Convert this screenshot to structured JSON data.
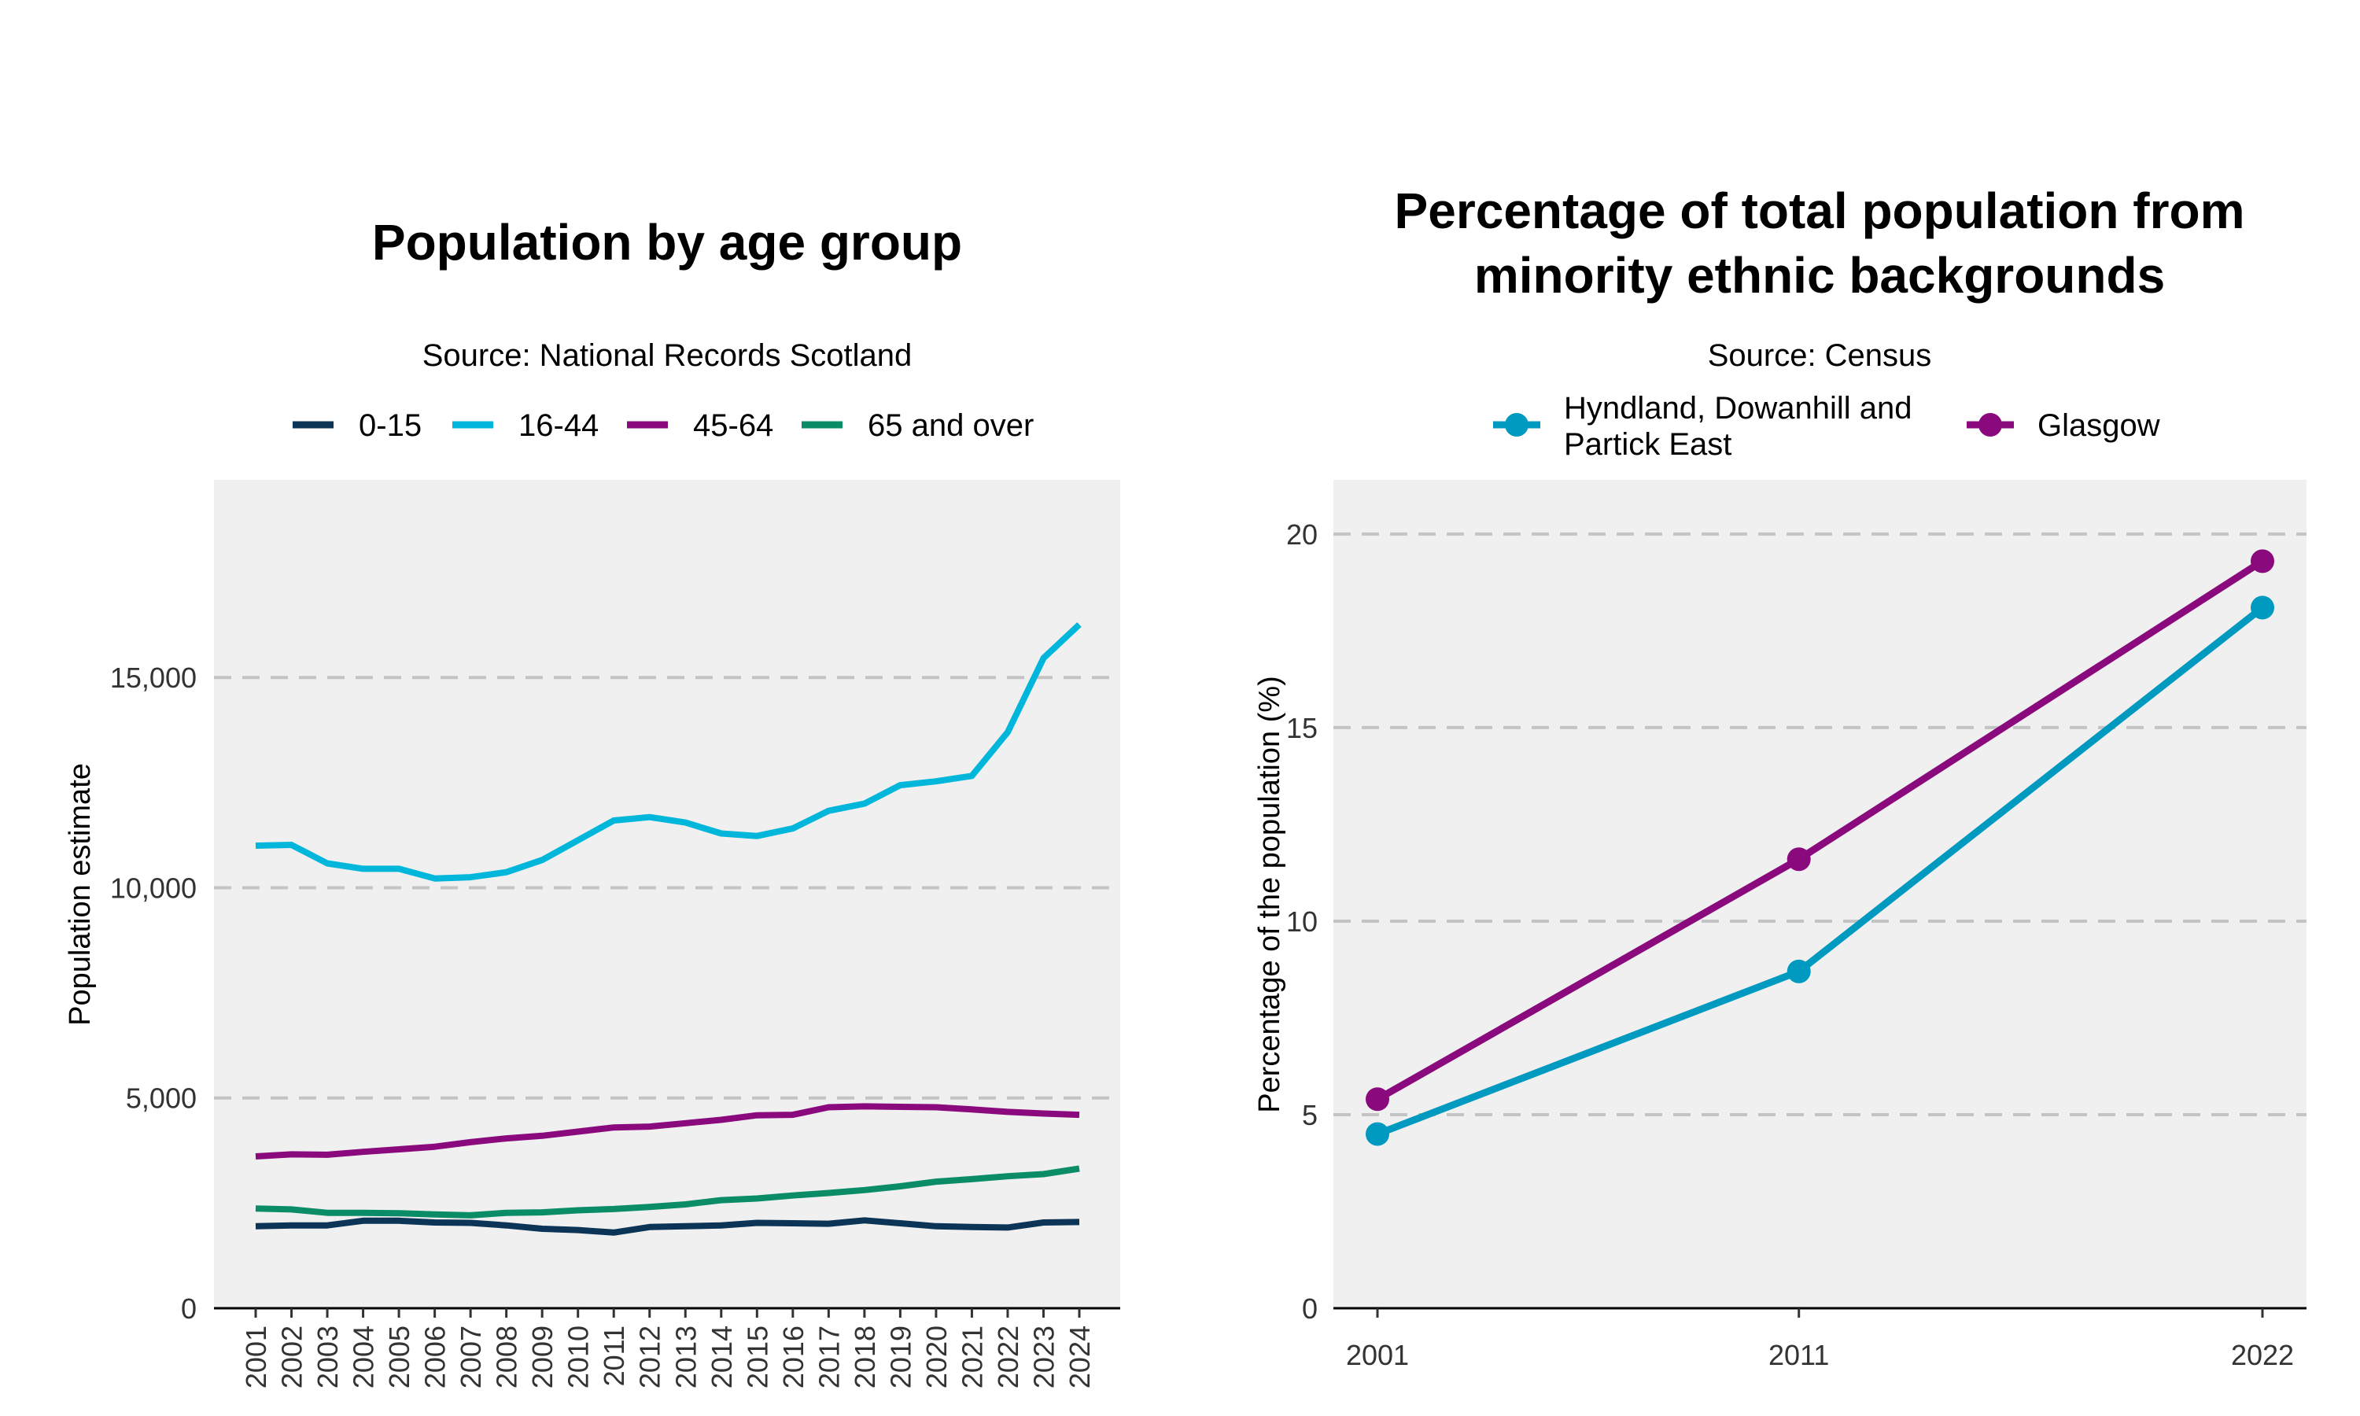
{
  "chart_data": [
    {
      "type": "line",
      "title": "Population by age group",
      "subtitle": "Source: National Records Scotland",
      "xlabel": "",
      "ylabel": "Population estimate",
      "ylim": [
        0,
        19700
      ],
      "yticks": [
        0,
        5000,
        10000,
        15000
      ],
      "ytick_labels": [
        "0",
        "5,000",
        "10,000",
        "15,000"
      ],
      "x": [
        "2001",
        "2002",
        "2003",
        "2004",
        "2005",
        "2006",
        "2007",
        "2008",
        "2009",
        "2010",
        "2011",
        "2012",
        "2013",
        "2014",
        "2015",
        "2016",
        "2017",
        "2018",
        "2019",
        "2020",
        "2021",
        "2022",
        "2023",
        "2024"
      ],
      "grid": "horizontal dashed",
      "legend_position": "top",
      "series": [
        {
          "name": "0-15",
          "color": "#0b3456",
          "values": [
            1950,
            1970,
            1970,
            2080,
            2080,
            2040,
            2030,
            1970,
            1890,
            1860,
            1800,
            1930,
            1950,
            1970,
            2030,
            2020,
            2010,
            2090,
            2020,
            1950,
            1930,
            1920,
            2040,
            2050
          ]
        },
        {
          "name": "16-44",
          "color": "#00b6da",
          "values": [
            11000,
            11020,
            10580,
            10450,
            10450,
            10220,
            10250,
            10370,
            10660,
            11130,
            11600,
            11680,
            11550,
            11290,
            11230,
            11410,
            11830,
            12000,
            12440,
            12530,
            12660,
            13700,
            15460,
            16260
          ]
        },
        {
          "name": "45-64",
          "color": "#8a0a7e",
          "values": [
            3610,
            3660,
            3650,
            3720,
            3780,
            3840,
            3950,
            4040,
            4100,
            4200,
            4300,
            4320,
            4400,
            4480,
            4590,
            4600,
            4780,
            4800,
            4790,
            4780,
            4730,
            4670,
            4630,
            4600
          ]
        },
        {
          "name": "65 and over",
          "color": "#0a8c67",
          "values": [
            2370,
            2350,
            2270,
            2270,
            2260,
            2230,
            2210,
            2270,
            2280,
            2330,
            2360,
            2410,
            2470,
            2570,
            2610,
            2680,
            2740,
            2810,
            2900,
            3010,
            3070,
            3140,
            3190,
            3320
          ]
        }
      ]
    },
    {
      "type": "line",
      "title": "Percentage of total population from minority ethnic backgrounds",
      "title_lines": [
        "Percentage of total population from",
        "minority ethnic backgrounds"
      ],
      "subtitle": "Source: Census",
      "xlabel": "",
      "ylabel": "Percentage of the population (%)",
      "ylim": [
        0,
        21.4
      ],
      "yticks": [
        0,
        5,
        10,
        15,
        20
      ],
      "ytick_labels": [
        "0",
        "5",
        "10",
        "15",
        "20"
      ],
      "x": [
        2001,
        2011,
        2022
      ],
      "grid": "horizontal dashed",
      "legend_position": "top",
      "series": [
        {
          "name": "Hyndland, Dowanhill and Partick East",
          "name_lines": [
            "Hyndland, Dowanhill and",
            "Partick East"
          ],
          "color": "#0099bf",
          "values": [
            4.5,
            8.7,
            18.1
          ]
        },
        {
          "name": "Glasgow",
          "color": "#8a0a7e",
          "values": [
            5.4,
            11.6,
            19.3
          ]
        }
      ]
    }
  ]
}
